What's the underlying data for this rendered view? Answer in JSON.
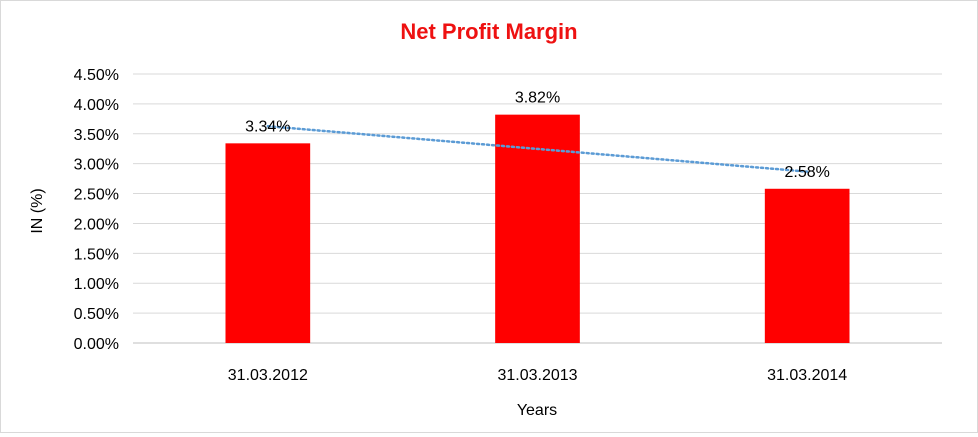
{
  "chart_data": {
    "type": "bar",
    "title": "Net Profit Margin",
    "title_color": "#ee1111",
    "xlabel": "Years",
    "ylabel": "IN (%)",
    "categories": [
      "31.03.2012",
      "31.03.2013",
      "31.03.2014"
    ],
    "series": [
      {
        "values": [
          3.34,
          3.82,
          2.58
        ],
        "color": "#ff0000"
      }
    ],
    "data_labels": [
      "3.34%",
      "3.82%",
      "2.58%"
    ],
    "y_ticks": [
      "0.00%",
      "0.50%",
      "1.00%",
      "1.50%",
      "2.00%",
      "2.50%",
      "3.00%",
      "3.50%",
      "4.00%",
      "4.50%"
    ],
    "ylim": [
      0,
      4.5
    ],
    "grid": true,
    "legend": "none",
    "trendline": {
      "type": "linear",
      "style": "dotted",
      "color": "#5b9bd5"
    }
  }
}
